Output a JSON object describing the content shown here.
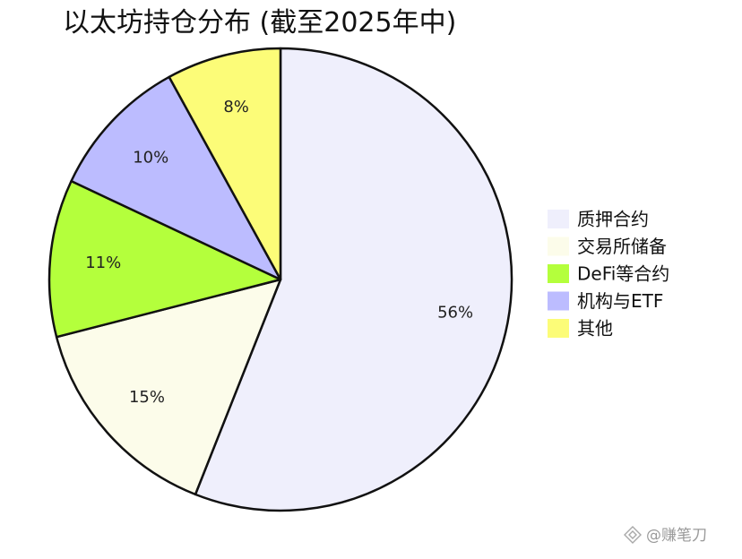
{
  "chart_data": {
    "type": "pie",
    "title": "以太坊持仓分布 (截至2025年中)",
    "categories": [
      "质押合约",
      "交易所储备",
      "DeFi等合约",
      "机构与ETF",
      "其他"
    ],
    "values": [
      56,
      15,
      11,
      10,
      8
    ],
    "labels": [
      "56%",
      "15%",
      "11%",
      "10%",
      "8%"
    ],
    "colors": [
      "#efeffc",
      "#fcfcea",
      "#b4ff3c",
      "#bcbcff",
      "#fcfc78"
    ],
    "start_angle_deg": 90,
    "direction": "clockwise",
    "legend_position": "right"
  },
  "watermark": {
    "text": "@赚笔刀",
    "icon": "binance-diamond-icon"
  }
}
